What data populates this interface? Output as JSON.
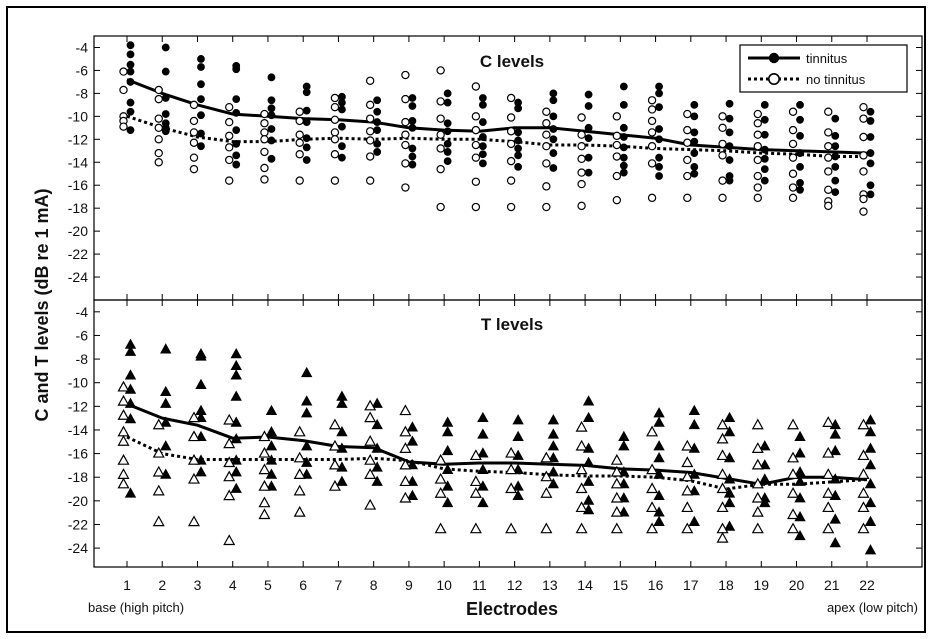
{
  "chart_data": {
    "type": "scatter",
    "xlabel": "Electrodes",
    "ylabel": "C and T levels (dB re 1 mA)",
    "x_note_left": "base (high pitch)",
    "x_note_right": "apex (low pitch)",
    "x_ticks": [
      "1",
      "2",
      "3",
      "4",
      "5",
      "6",
      "7",
      "8",
      "9",
      "10",
      "11",
      "12",
      "13",
      "14",
      "15",
      "16",
      "17",
      "18",
      "19",
      "20",
      "21",
      "22"
    ],
    "legend": {
      "position": "top-right",
      "entries": [
        "tinnitus",
        "no tinnitus"
      ]
    },
    "panels": [
      {
        "title": "C levels",
        "ylim": [
          -26,
          -3
        ],
        "yticks": [
          "-4",
          "-6",
          "-8",
          "-10",
          "-12",
          "-14",
          "-16",
          "-18",
          "-20",
          "-22",
          "-24"
        ],
        "series": [
          {
            "name": "tinnitus",
            "marker": "filled-circle",
            "line": "solid",
            "mean": [
              -6.8,
              -8.0,
              -9.0,
              -9.8,
              -10.0,
              -10.2,
              -10.3,
              -10.5,
              -11.0,
              -11.2,
              -11.3,
              -11.0,
              -11.0,
              -11.3,
              -11.6,
              -11.9,
              -12.5,
              -12.7,
              -12.9,
              -13.0,
              -13.1,
              -13.2
            ],
            "points": [
              [
                -3.8,
                -4.6,
                -5.5,
                -6.1,
                -7.0,
                -8.8,
                -9.6,
                -11.2
              ],
              [
                -4.0,
                -6.1,
                -8.4,
                -9.8,
                -10.6,
                -11.0,
                -11.3
              ],
              [
                -5.0,
                -5.7,
                -7.2,
                -8.5,
                -9.9,
                -11.5,
                -12.6
              ],
              [
                -5.6,
                -5.9,
                -8.5,
                -9.7,
                -11.2,
                -12.4,
                -13.4,
                -14.2
              ],
              [
                -6.6,
                -8.6,
                -9.3,
                -9.9,
                -11.1,
                -12.1,
                -13.7
              ],
              [
                -7.4,
                -7.9,
                -9.5,
                -10.5,
                -11.9,
                -12.7,
                -13.8
              ],
              [
                -8.3,
                -8.8,
                -9.4,
                -10.9,
                -12.6,
                -13.6
              ],
              [
                -8.6,
                -9.6,
                -10.5,
                -11.2,
                -12.4,
                -13.1
              ],
              [
                -8.4,
                -9.1,
                -10.4,
                -11.0,
                -12.8,
                -13.5,
                -14.2
              ],
              [
                -8.0,
                -8.8,
                -10.6,
                -11.3,
                -12.4,
                -13.1,
                -13.9
              ],
              [
                -8.4,
                -9.0,
                -10.5,
                -11.8,
                -12.6,
                -13.3,
                -14.1
              ],
              [
                -8.8,
                -9.3,
                -11.4,
                -12.1,
                -12.8,
                -13.4,
                -14.4
              ],
              [
                -8.0,
                -8.6,
                -10.0,
                -11.1,
                -12.0,
                -13.2,
                -14.5
              ],
              [
                -8.1,
                -9.1,
                -11.0,
                -11.9,
                -13.6,
                -14.9
              ],
              [
                -7.4,
                -9.0,
                -11.0,
                -11.8,
                -12.7,
                -13.6,
                -14.3,
                -14.9
              ],
              [
                -7.4,
                -8.0,
                -9.2,
                -11.1,
                -12.0,
                -13.6,
                -14.4,
                -15.2
              ],
              [
                -9.0,
                -10.0,
                -11.4,
                -12.2,
                -13.2,
                -14.4,
                -15.0
              ],
              [
                -8.9,
                -10.2,
                -11.4,
                -12.6,
                -13.8,
                -15.2,
                -15.6
              ],
              [
                -9.0,
                -10.3,
                -11.6,
                -12.9,
                -13.7,
                -14.6,
                -15.6
              ],
              [
                -9.0,
                -10.3,
                -11.7,
                -13.2,
                -14.4,
                -15.8,
                -16.4
              ],
              [
                -10.2,
                -11.7,
                -12.6,
                -13.5,
                -14.4,
                -15.6,
                -16.6
              ],
              [
                -9.6,
                -10.4,
                -11.8,
                -13.2,
                -14.1,
                -16.0,
                -16.8
              ]
            ]
          },
          {
            "name": "no tinnitus",
            "marker": "open-circle",
            "line": "dotted",
            "mean": [
              -10.0,
              -11.0,
              -11.8,
              -12.2,
              -12.2,
              -12.0,
              -11.9,
              -12.0,
              -11.9,
              -12.0,
              -12.0,
              -12.2,
              -12.5,
              -12.5,
              -12.6,
              -12.8,
              -12.9,
              -13.0,
              -13.2,
              -13.3,
              -13.5,
              -13.5
            ],
            "points": [
              [
                -6.1,
                -7.7,
                -10.0,
                -10.4,
                -10.9
              ],
              [
                -7.7,
                -8.5,
                -10.2,
                -11.0,
                -12.0,
                -13.2,
                -14.0
              ],
              [
                -9.0,
                -10.4,
                -11.4,
                -12.3,
                -13.6,
                -14.6
              ],
              [
                -9.2,
                -10.5,
                -11.7,
                -12.7,
                -13.8,
                -15.6
              ],
              [
                -9.8,
                -10.6,
                -11.4,
                -12.0,
                -13.1,
                -14.5,
                -15.5
              ],
              [
                -9.6,
                -10.4,
                -11.6,
                -12.3,
                -13.3,
                -15.6
              ],
              [
                -8.4,
                -9.2,
                -10.3,
                -11.4,
                -12.0,
                -13.3,
                -15.6
              ],
              [
                -6.9,
                -9.0,
                -10.2,
                -11.3,
                -12.1,
                -13.5,
                -15.6
              ],
              [
                -6.4,
                -8.5,
                -10.5,
                -11.6,
                -12.5,
                -14.1,
                -16.2
              ],
              [
                -6.0,
                -8.7,
                -10.2,
                -11.6,
                -12.8,
                -14.6,
                -17.9
              ],
              [
                -7.4,
                -10.0,
                -11.2,
                -12.5,
                -13.6,
                -15.7,
                -17.9
              ],
              [
                -8.4,
                -10.1,
                -11.3,
                -12.4,
                -13.9,
                -15.6,
                -17.9
              ],
              [
                -9.6,
                -10.6,
                -11.6,
                -12.6,
                -14.1,
                -16.1,
                -17.9
              ],
              [
                -10.1,
                -11.6,
                -12.6,
                -13.7,
                -14.9,
                -15.9,
                -17.8
              ],
              [
                -10.0,
                -11.7,
                -12.5,
                -13.5,
                -15.2,
                -17.3
              ],
              [
                -8.6,
                -9.4,
                -10.4,
                -11.4,
                -12.6,
                -14.1,
                -17.1
              ],
              [
                -9.8,
                -11.2,
                -12.3,
                -13.8,
                -15.2,
                -17.1
              ],
              [
                -10.0,
                -11.0,
                -12.4,
                -13.4,
                -15.6,
                -17.1
              ],
              [
                -9.8,
                -10.6,
                -11.6,
                -12.6,
                -13.8,
                -15.2,
                -16.2,
                -17.1
              ],
              [
                -9.6,
                -11.2,
                -12.4,
                -13.6,
                -15.0,
                -16.2,
                -17.1
              ],
              [
                -9.6,
                -11.4,
                -12.6,
                -13.6,
                -14.8,
                -16.4,
                -17.4,
                -17.8
              ],
              [
                -9.2,
                -10.2,
                -11.8,
                -13.4,
                -14.8,
                -16.8,
                -17.2,
                -18.3
              ]
            ]
          }
        ]
      },
      {
        "title": "T levels",
        "ylim": [
          -25.6,
          -3
        ],
        "yticks": [
          "-4",
          "-6",
          "-8",
          "-10",
          "-12",
          "-14",
          "-16",
          "-18",
          "-20",
          "-22",
          "-24"
        ],
        "series": [
          {
            "name": "tinnitus",
            "marker": "filled-triangle",
            "line": "solid",
            "mean": [
              -11.8,
              -13.0,
              -13.6,
              -14.7,
              -14.6,
              -14.9,
              -15.4,
              -15.5,
              -16.7,
              -16.9,
              -16.8,
              -16.8,
              -16.9,
              -17.0,
              -17.3,
              -17.4,
              -17.6,
              -18.1,
              -18.6,
              -18.0,
              -18.0,
              -18.2
            ],
            "points": [
              [
                -6.8,
                -7.4,
                -9.4,
                -10.6,
                -11.8,
                -13.1,
                -19.4
              ],
              [
                -7.2,
                -10.8,
                -11.8,
                -13.4,
                -15.4,
                -17.8
              ],
              [
                -7.6,
                -7.8,
                -10.2,
                -12.4,
                -13.0,
                -14.6,
                -16.6,
                -17.6
              ],
              [
                -7.6,
                -8.6,
                -9.4,
                -11.2,
                -13.4,
                -14.8,
                -16.6,
                -17.6,
                -19.0
              ],
              [
                -12.4,
                -14.2,
                -15.4,
                -16.6,
                -17.8,
                -18.8
              ],
              [
                -9.2,
                -11.6,
                -12.6,
                -15.4,
                -16.8,
                -17.8
              ],
              [
                -11.2,
                -11.8,
                -14.2,
                -15.6,
                -17.2,
                -18.4
              ],
              [
                -11.8,
                -13.6,
                -15.6,
                -17.2,
                -18.4
              ],
              [
                -13.8,
                -15.0,
                -17.0,
                -18.4,
                -19.6
              ],
              [
                -13.4,
                -14.2,
                -15.8,
                -17.4,
                -18.8,
                -20.2
              ],
              [
                -13.0,
                -14.4,
                -16.0,
                -17.4,
                -18.8,
                -20.2
              ],
              [
                -13.2,
                -14.6,
                -16.2,
                -17.4,
                -18.8,
                -19.6
              ],
              [
                -13.2,
                -14.4,
                -15.4,
                -16.4,
                -17.6,
                -18.6
              ],
              [
                -11.6,
                -13.0,
                -15.6,
                -16.8,
                -18.4,
                -20.0,
                -20.8
              ],
              [
                -14.6,
                -15.4,
                -17.6,
                -18.6,
                -19.8,
                -21.0
              ],
              [
                -12.6,
                -13.4,
                -15.4,
                -16.4,
                -17.8,
                -19.6,
                -21.0,
                -21.8
              ],
              [
                -12.4,
                -13.6,
                -15.6,
                -17.8,
                -19.2,
                -21.8
              ],
              [
                -13.0,
                -14.2,
                -16.4,
                -18.2,
                -19.4,
                -20.2,
                -22.2
              ],
              [
                -15.4,
                -17.0,
                -18.2,
                -19.8,
                -20.2
              ],
              [
                -14.6,
                -16.0,
                -17.6,
                -18.4,
                -19.8,
                -21.4,
                -23.0
              ],
              [
                -13.6,
                -14.4,
                -15.8,
                -18.2,
                -19.6,
                -21.6,
                -23.6
              ],
              [
                -13.2,
                -14.2,
                -15.6,
                -17.0,
                -18.6,
                -20.2,
                -21.8,
                -24.2
              ]
            ]
          },
          {
            "name": "no tinnitus",
            "marker": "open-triangle",
            "line": "dotted",
            "mean": [
              -14.6,
              -16.0,
              -16.5,
              -16.5,
              -16.5,
              -16.5,
              -16.5,
              -16.4,
              -16.6,
              -17.3,
              -17.5,
              -17.6,
              -17.8,
              -17.9,
              -17.9,
              -18.0,
              -18.3,
              -19.0,
              -18.6,
              -18.6,
              -18.4,
              -18.2
            ],
            "points": [
              [
                -10.4,
                -11.6,
                -12.8,
                -14.2,
                -15.0,
                -16.6,
                -17.8,
                -18.6
              ],
              [
                -13.6,
                -16.0,
                -17.6,
                -19.2,
                -21.8
              ],
              [
                -13.0,
                -14.6,
                -16.6,
                -18.2,
                -21.8
              ],
              [
                -13.2,
                -15.2,
                -16.8,
                -18.0,
                -19.6,
                -23.4
              ],
              [
                -14.6,
                -16.0,
                -17.4,
                -18.8,
                -20.2,
                -21.2
              ],
              [
                -14.2,
                -16.4,
                -17.8,
                -19.2,
                -21.0
              ],
              [
                -13.6,
                -15.4,
                -17.0,
                -18.8
              ],
              [
                -12.0,
                -13.0,
                -15.0,
                -16.6,
                -17.8,
                -20.4
              ],
              [
                -12.4,
                -14.2,
                -15.6,
                -17.0,
                -18.4,
                -19.8
              ],
              [
                -16.6,
                -18.2,
                -19.4,
                -22.4
              ],
              [
                -16.2,
                -18.4,
                -19.4,
                -22.4
              ],
              [
                -16.0,
                -17.4,
                -19.0,
                -22.4
              ],
              [
                -16.4,
                -18.0,
                -19.4,
                -22.4
              ],
              [
                -13.8,
                -15.4,
                -17.4,
                -19.0,
                -20.6,
                -22.4
              ],
              [
                -16.6,
                -17.6,
                -18.6,
                -19.8,
                -21.0,
                -22.4
              ],
              [
                -14.2,
                -17.4,
                -19.0,
                -20.6,
                -22.4
              ],
              [
                -15.4,
                -16.8,
                -18.0,
                -19.2,
                -20.6,
                -22.4
              ],
              [
                -13.6,
                -14.8,
                -16.2,
                -17.8,
                -19.0,
                -20.6,
                -22.4,
                -23.2
              ],
              [
                -13.6,
                -15.6,
                -17.0,
                -18.6,
                -19.8,
                -21.0,
                -22.4
              ],
              [
                -13.6,
                -16.4,
                -17.8,
                -19.4,
                -21.2,
                -22.4
              ],
              [
                -13.4,
                -16.0,
                -17.8,
                -19.4,
                -20.6,
                -22.4
              ],
              [
                -13.6,
                -16.2,
                -17.8,
                -19.4,
                -20.6,
                -22.4
              ]
            ]
          }
        ]
      }
    ]
  }
}
